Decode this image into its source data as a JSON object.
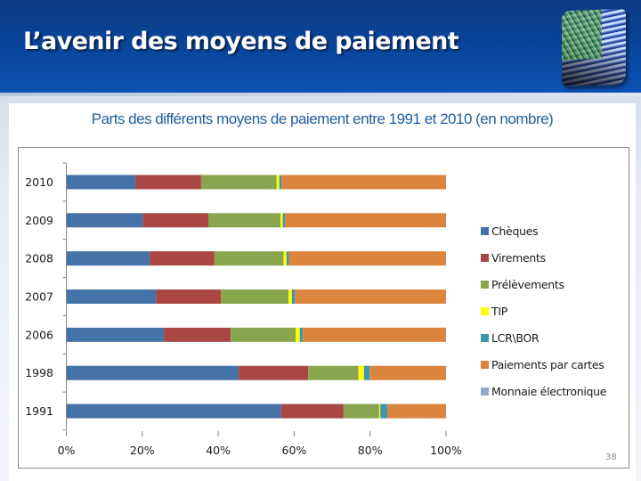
{
  "slide": {
    "title": "L’avenir des moyens de paiement",
    "slide_number": "38",
    "logo_icon": "abstract-light-streaks-logo"
  },
  "chart_data": {
    "type": "bar",
    "orientation": "horizontal",
    "stacked": "percent",
    "title": "Parts des différents moyens de paiement entre 1991 et 2010 (en nombre)",
    "xlabel": "",
    "ylabel": "",
    "xlim": [
      0,
      100
    ],
    "x_ticks": [
      "0%",
      "20%",
      "40%",
      "60%",
      "80%",
      "100%"
    ],
    "grid": false,
    "legend_position": "right",
    "categories": [
      "2010",
      "2009",
      "2008",
      "2007",
      "2006",
      "1998",
      "1991"
    ],
    "series": [
      {
        "name": "Chèques",
        "color": "#4572a7",
        "values": [
          18.2,
          20.2,
          22.0,
          23.6,
          25.7,
          45.4,
          56.6
        ]
      },
      {
        "name": "Virements",
        "color": "#aa4643",
        "values": [
          17.3,
          17.2,
          17.0,
          17.1,
          17.6,
          18.3,
          16.4
        ]
      },
      {
        "name": "Prélèvements",
        "color": "#89a54e",
        "values": [
          19.9,
          19.0,
          18.2,
          17.8,
          17.1,
          13.2,
          9.4
        ]
      },
      {
        "name": "TIP",
        "color": "#ffff00",
        "values": [
          0.7,
          0.6,
          0.8,
          0.9,
          1.1,
          1.5,
          0.3
        ]
      },
      {
        "name": "LCR\\BOR",
        "color": "#3d96ae",
        "values": [
          0.6,
          0.6,
          0.6,
          0.8,
          0.8,
          1.5,
          1.9
        ]
      },
      {
        "name": "Paiements par cartes",
        "color": "#db843d",
        "values": [
          43.3,
          42.4,
          41.4,
          39.8,
          37.7,
          20.1,
          15.4
        ]
      },
      {
        "name": "Monnaie électronique",
        "color": "#93a9cf",
        "values": [
          0.0,
          0.0,
          0.0,
          0.0,
          0.0,
          0.0,
          0.0
        ]
      }
    ]
  }
}
